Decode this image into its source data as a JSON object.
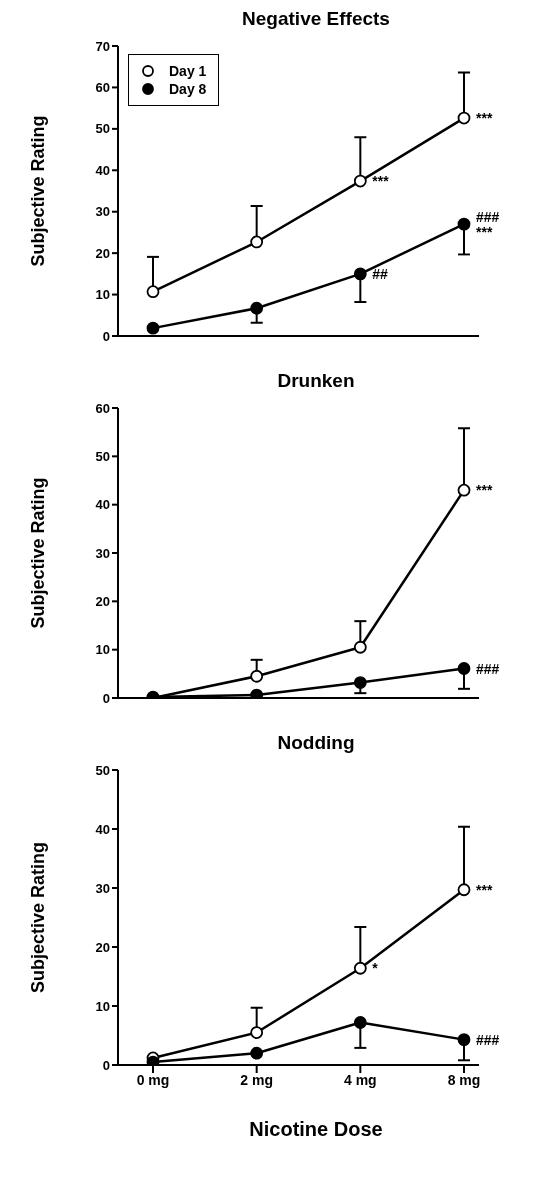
{
  "chart_data": [
    {
      "type": "line",
      "title": "Negative Effects",
      "ylabel": "Subjective Rating",
      "categories": [
        "0 mg",
        "2 mg",
        "4 mg",
        "8 mg"
      ],
      "ylim": [
        0,
        70
      ],
      "yticks": [
        0,
        10,
        20,
        30,
        40,
        50,
        60,
        70
      ],
      "tick_labels": "y",
      "legend": "top left",
      "marker": "circle",
      "line_style": "solid",
      "grid": false,
      "series": [
        {
          "name": "Day 1",
          "color": "#000000",
          "values": [
            10.7,
            22.7,
            37.4,
            52.6
          ],
          "errors": [
            [
              10.7,
              19.1
            ],
            [
              22.7,
              31.4
            ],
            [
              37.4,
              48.0
            ],
            [
              52.6,
              63.6
            ]
          ]
        },
        {
          "name": "Day 8",
          "color": "#000000",
          "values": [
            1.9,
            6.7,
            15.0,
            27.0
          ],
          "errors": [
            null,
            [
              3.2,
              6.7
            ],
            [
              8.2,
              15.0
            ],
            [
              19.7,
              27.0
            ]
          ]
        }
      ],
      "annotations": [
        {
          "text": "***",
          "x": "8 mg",
          "y": 52.6
        },
        {
          "text": "***",
          "x": "4 mg",
          "y": 37.4
        },
        {
          "text": "###",
          "x": "8 mg",
          "y": 27.0
        },
        {
          "text": "***",
          "x": "8 mg",
          "y": 27.0
        },
        {
          "text": "##",
          "x": "4 mg",
          "y": 15.0
        }
      ]
    },
    {
      "type": "line",
      "title": "Drunken",
      "ylabel": "Subjective Rating",
      "categories": [
        "0 mg",
        "2 mg",
        "4 mg",
        "8 mg"
      ],
      "ylim": [
        0,
        60
      ],
      "yticks": [
        0,
        10,
        20,
        30,
        40,
        50,
        60
      ],
      "tick_labels": "y",
      "marker": "circle",
      "line_style": "solid",
      "grid": false,
      "series": [
        {
          "color": "#000000",
          "values": [
            0,
            4.5,
            10.5,
            43.0
          ],
          "errors": [
            null,
            [
              4.5,
              7.9
            ],
            [
              10.5,
              15.9
            ],
            [
              43.0,
              55.8
            ]
          ]
        },
        {
          "color": "#000000",
          "values": [
            0.2,
            0.6,
            3.2,
            6.1
          ],
          "errors": [
            null,
            null,
            [
              1.0,
              3.2
            ],
            [
              1.9,
              6.1
            ]
          ]
        }
      ],
      "annotations": [
        {
          "text": "***",
          "x": "8 mg",
          "y": 43.0
        },
        {
          "text": "###",
          "x": "8 mg",
          "y": 6.1
        }
      ]
    },
    {
      "type": "line",
      "title": "Nodding",
      "ylabel": "Subjective Rating",
      "xlabel": "Nicotine Dose",
      "categories": [
        "0 mg",
        "2 mg",
        "4 mg",
        "8 mg"
      ],
      "ylim": [
        0,
        50
      ],
      "yticks": [
        0,
        10,
        20,
        30,
        40,
        50
      ],
      "marker": "circle",
      "line_style": "solid",
      "grid": false,
      "series": [
        {
          "color": "#000000",
          "values": [
            1.2,
            5.5,
            16.4,
            29.7
          ],
          "errors": [
            null,
            [
              5.5,
              9.7
            ],
            [
              16.4,
              23.4
            ],
            [
              29.7,
              40.4
            ]
          ]
        },
        {
          "color": "#000000",
          "values": [
            0.5,
            2.0,
            7.2,
            4.3
          ],
          "errors": [
            null,
            null,
            [
              2.9,
              7.2
            ],
            [
              0.8,
              4.3
            ]
          ]
        }
      ],
      "annotations": [
        {
          "text": "***",
          "x": "8 mg",
          "y": 29.7
        },
        {
          "text": "*",
          "x": "4 mg",
          "y": 16.4
        },
        {
          "text": "###",
          "x": "8 mg",
          "y": 4.3
        }
      ]
    }
  ]
}
